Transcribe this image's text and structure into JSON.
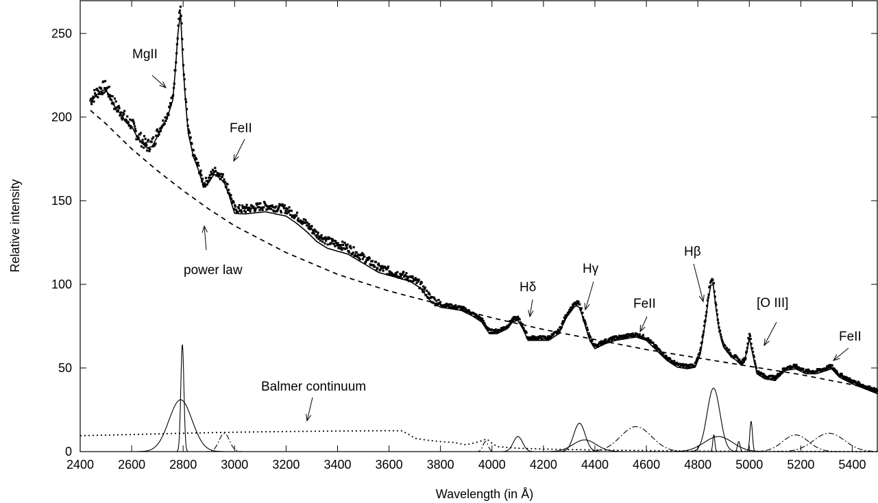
{
  "chart_data": {
    "type": "line",
    "title": "",
    "xlabel": "Wavelength (in Å)",
    "ylabel": "Relative intensity",
    "xlim": [
      2400,
      5500
    ],
    "ylim": [
      0,
      270
    ],
    "xticks": [
      2400,
      2600,
      2800,
      3000,
      3200,
      3400,
      3600,
      3800,
      4000,
      4200,
      4400,
      4600,
      4800,
      5000,
      5200,
      5400
    ],
    "yticks": [
      0,
      50,
      100,
      150,
      200,
      250
    ],
    "grid": false,
    "legend": "none",
    "series": [
      {
        "style": "dots",
        "x": [
          2440,
          2460,
          2480,
          2500,
          2520,
          2540,
          2560,
          2580,
          2600,
          2620,
          2640,
          2660,
          2680,
          2700,
          2720,
          2740,
          2760,
          2770,
          2780,
          2785,
          2790,
          2795,
          2800,
          2810,
          2820,
          2840,
          2860,
          2880,
          2900,
          2920,
          2940,
          2960,
          2980,
          3000,
          3040,
          3080,
          3120,
          3160,
          3200,
          3240,
          3280,
          3320,
          3360,
          3400,
          3440,
          3480,
          3520,
          3560,
          3600,
          3640,
          3680,
          3720,
          3760,
          3800,
          3840,
          3880,
          3920,
          3960,
          3990,
          4020,
          4060,
          4080,
          4100,
          4120,
          4140,
          4180,
          4220,
          4260,
          4290,
          4320,
          4335,
          4345,
          4360,
          4380,
          4400,
          4440,
          4480,
          4520,
          4560,
          4600,
          4640,
          4680,
          4720,
          4760,
          4790,
          4810,
          4830,
          4845,
          4855,
          4862,
          4870,
          4885,
          4900,
          4930,
          4950,
          4970,
          4985,
          4995,
          5002,
          5010,
          5030,
          5060,
          5100,
          5140,
          5180,
          5220,
          5260,
          5300,
          5320,
          5350,
          5400,
          5450,
          5500
        ],
        "y": [
          210,
          214,
          217,
          218,
          212,
          206,
          203,
          198,
          196,
          190,
          186,
          183,
          184,
          190,
          196,
          202,
          212,
          230,
          252,
          263,
          264,
          255,
          232,
          210,
          192,
          178,
          170,
          160,
          163,
          168,
          166,
          163,
          155,
          145,
          145,
          146,
          147,
          146,
          145,
          141,
          136,
          130,
          126,
          124,
          122,
          118,
          114,
          110,
          108,
          106,
          104,
          100,
          92,
          88,
          87,
          86,
          83,
          79,
          72,
          72,
          75,
          79,
          80,
          75,
          68,
          68,
          68,
          72,
          82,
          88,
          89,
          86,
          78,
          68,
          63,
          66,
          68,
          69,
          70,
          68,
          62,
          56,
          52,
          51,
          52,
          60,
          80,
          98,
          104,
          100,
          88,
          72,
          64,
          58,
          56,
          53,
          56,
          66,
          71,
          62,
          48,
          45,
          44,
          50,
          51,
          48,
          48,
          50,
          51,
          46,
          42,
          39,
          36
        ]
      },
      {
        "name": "power law",
        "style": "dashed",
        "x": [
          2440,
          2500,
          2600,
          2700,
          2800,
          2900,
          3000,
          3200,
          3400,
          3600,
          3800,
          4000,
          4200,
          4400,
          4600,
          4800,
          5000,
          5200,
          5400,
          5500
        ],
        "y": [
          204,
          196,
          181,
          168,
          156,
          145,
          135,
          119,
          106,
          96,
          88,
          80,
          73,
          67,
          61,
          56,
          51,
          46,
          40,
          37
        ]
      },
      {
        "name": "Balmer continuum",
        "style": "dotted",
        "x": [
          2400,
          2600,
          2800,
          3000,
          3200,
          3400,
          3600,
          3650,
          3680,
          3700,
          3750,
          3800,
          3850,
          3900,
          3950,
          3980,
          4000,
          4020,
          4100,
          4200,
          4400,
          4600,
          4800,
          5000,
          5200,
          5400,
          5500
        ],
        "y": [
          9.5,
          10.2,
          11,
          11.6,
          12,
          12.3,
          12.5,
          12.4,
          10,
          8,
          6.8,
          6,
          5.5,
          4,
          6,
          7.5,
          5,
          3,
          2,
          1.5,
          1,
          0.6,
          0.3,
          0.2,
          0.1,
          0.05,
          0
        ]
      }
    ],
    "annotations": [
      {
        "text": "MgII",
        "x": 2790,
        "y": 264
      },
      {
        "text": "FeII",
        "x": 2960,
        "y": 170
      },
      {
        "text": "power law",
        "x": 3000,
        "y": 135
      },
      {
        "text": "Hδ",
        "x": 4100,
        "y": 80
      },
      {
        "text": "Hγ",
        "x": 4340,
        "y": 89
      },
      {
        "text": "FeII",
        "x": 4580,
        "y": 70
      },
      {
        "text": "Hβ",
        "x": 4860,
        "y": 104
      },
      {
        "text": "[O III]",
        "x": 5007,
        "y": 71
      },
      {
        "text": "FeII",
        "x": 5300,
        "y": 51
      },
      {
        "text": "Balmer continuum",
        "x": 3400,
        "y": 12.3
      }
    ]
  }
}
